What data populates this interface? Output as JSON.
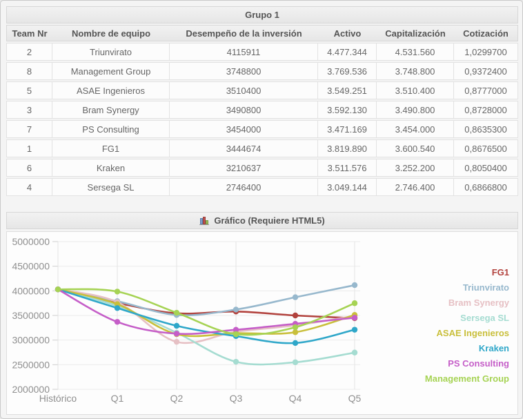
{
  "group_table": {
    "title": "Grupo 1",
    "columns": [
      "Team Nr",
      "Nombre de equipo",
      "Desempeño de la inversión",
      "Activo",
      "Capitalización",
      "Cotización"
    ],
    "rows": [
      [
        "2",
        "Triunvirato",
        "4115911",
        "4.477.344",
        "4.531.560",
        "1,0299700"
      ],
      [
        "8",
        "Management Group",
        "3748800",
        "3.769.536",
        "3.748.800",
        "0,9372400"
      ],
      [
        "5",
        "ASAE Ingenieros",
        "3510400",
        "3.549.251",
        "3.510.400",
        "0,8777000"
      ],
      [
        "3",
        "Bram Synergy",
        "3490800",
        "3.592.130",
        "3.490.800",
        "0,8728000"
      ],
      [
        "7",
        "PS Consulting",
        "3454000",
        "3.471.169",
        "3.454.000",
        "0,8635300"
      ],
      [
        "1",
        "FG1",
        "3444674",
        "3.819.890",
        "3.600.540",
        "0,8676500"
      ],
      [
        "6",
        "Kraken",
        "3210637",
        "3.511.576",
        "3.252.200",
        "0,8050400"
      ],
      [
        "4",
        "Sersega SL",
        "2746400",
        "3.049.144",
        "2.746.400",
        "0,6866800"
      ]
    ]
  },
  "chart_section": {
    "title": "Gráfico (Requiere HTML5)",
    "icon": "bar-chart-icon"
  },
  "chart_data": {
    "type": "line",
    "x": [
      "Histórico",
      "Q1",
      "Q2",
      "Q3",
      "Q4",
      "Q5"
    ],
    "ylim": [
      2000000,
      5000000
    ],
    "ytick_step": 500000,
    "yticks": [
      2000000,
      2500000,
      3000000,
      3500000,
      4000000,
      4500000,
      5000000
    ],
    "grid": true,
    "legend_position": "right",
    "series": [
      {
        "name": "FG1",
        "color": "#b2423d",
        "values": [
          4030000,
          3755000,
          3545000,
          3580000,
          3500000,
          3444674
        ]
      },
      {
        "name": "Triunvirato",
        "color": "#97b8cd",
        "values": [
          4030000,
          3790000,
          3510000,
          3620000,
          3870000,
          4115911
        ]
      },
      {
        "name": "Bram Synergy",
        "color": "#e6c0c4",
        "values": [
          4030000,
          3770000,
          2965000,
          3170000,
          3300000,
          3490800
        ]
      },
      {
        "name": "Sersega SL",
        "color": "#a5dcd1",
        "values": [
          4030000,
          3690000,
          3150000,
          2560000,
          2550000,
          2746400
        ]
      },
      {
        "name": "ASAE Ingenieros",
        "color": "#c9bf3b",
        "values": [
          4030000,
          3730000,
          3120000,
          3140000,
          3160000,
          3510400
        ]
      },
      {
        "name": "Kraken",
        "color": "#2fa7c9",
        "values": [
          4030000,
          3650000,
          3290000,
          3080000,
          2940000,
          3210637
        ]
      },
      {
        "name": "PS Consulting",
        "color": "#c55ec8",
        "values": [
          4030000,
          3370000,
          3130000,
          3210000,
          3330000,
          3454000
        ]
      },
      {
        "name": "Management Group",
        "color": "#a6d354",
        "values": [
          4030000,
          3985000,
          3555000,
          3120000,
          3260000,
          3748800
        ]
      }
    ]
  }
}
